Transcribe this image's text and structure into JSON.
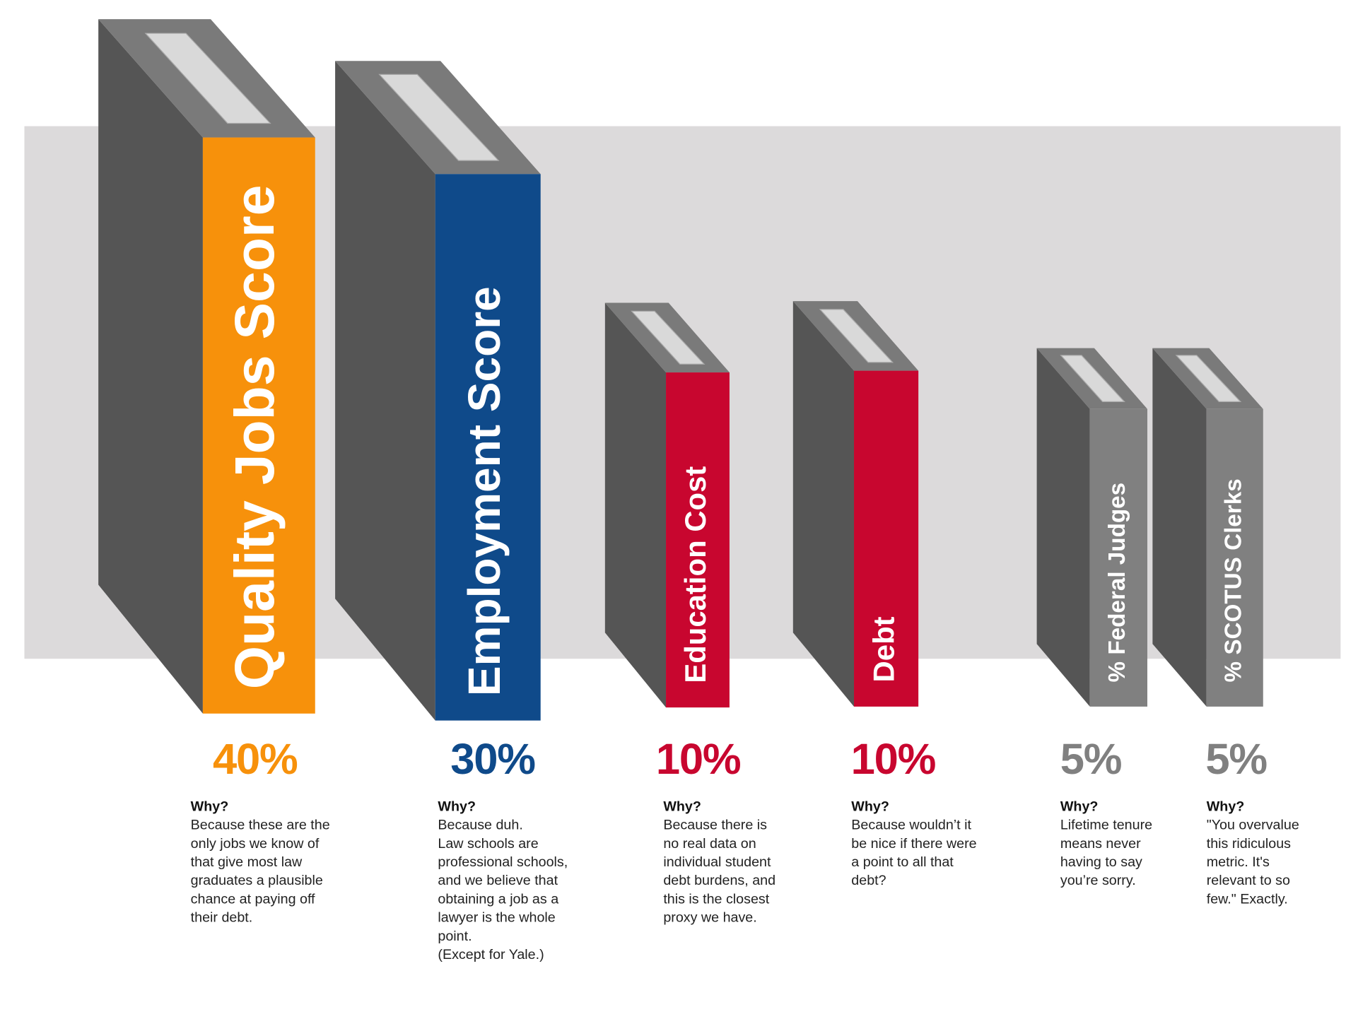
{
  "items": [
    {
      "title": "Quality Jobs Score",
      "weight": "40%",
      "why": "Why?",
      "text": [
        "Because these are the",
        "only jobs we know of",
        "that give most law",
        "graduates a plausible",
        "chance at paying off",
        "their debt."
      ]
    },
    {
      "title": "Employment Score",
      "weight": "30%",
      "why": "Why?",
      "text": [
        "Because duh.",
        "Law schools are",
        "professional schools,",
        "and we believe that",
        "obtaining a job as a",
        "lawyer is the whole",
        "point.",
        "(Except for Yale.)"
      ]
    },
    {
      "title": "Education Cost",
      "weight": "10%",
      "why": "Why?",
      "text": [
        "Because there is",
        "no real data on",
        "individual student",
        "debt burdens, and",
        "this is the closest",
        "proxy we have."
      ]
    },
    {
      "title": "Debt",
      "weight": "10%",
      "why": "Why?",
      "text": [
        "Because wouldn’t it",
        "be nice if there were",
        "a point to all that",
        "debt?"
      ]
    },
    {
      "title": "% Federal Judges",
      "weight": "5%",
      "why": "Why?",
      "text": [
        "Lifetime tenure",
        "means never",
        "having to say",
        "you’re sorry."
      ]
    },
    {
      "title": "% SCOTUS Clerks",
      "weight": "5%",
      "why": "Why?",
      "text": [
        "\"You overvalue",
        "this ridiculous",
        "metric. It's",
        "relevant to so",
        "few.\" Exactly."
      ]
    }
  ]
}
